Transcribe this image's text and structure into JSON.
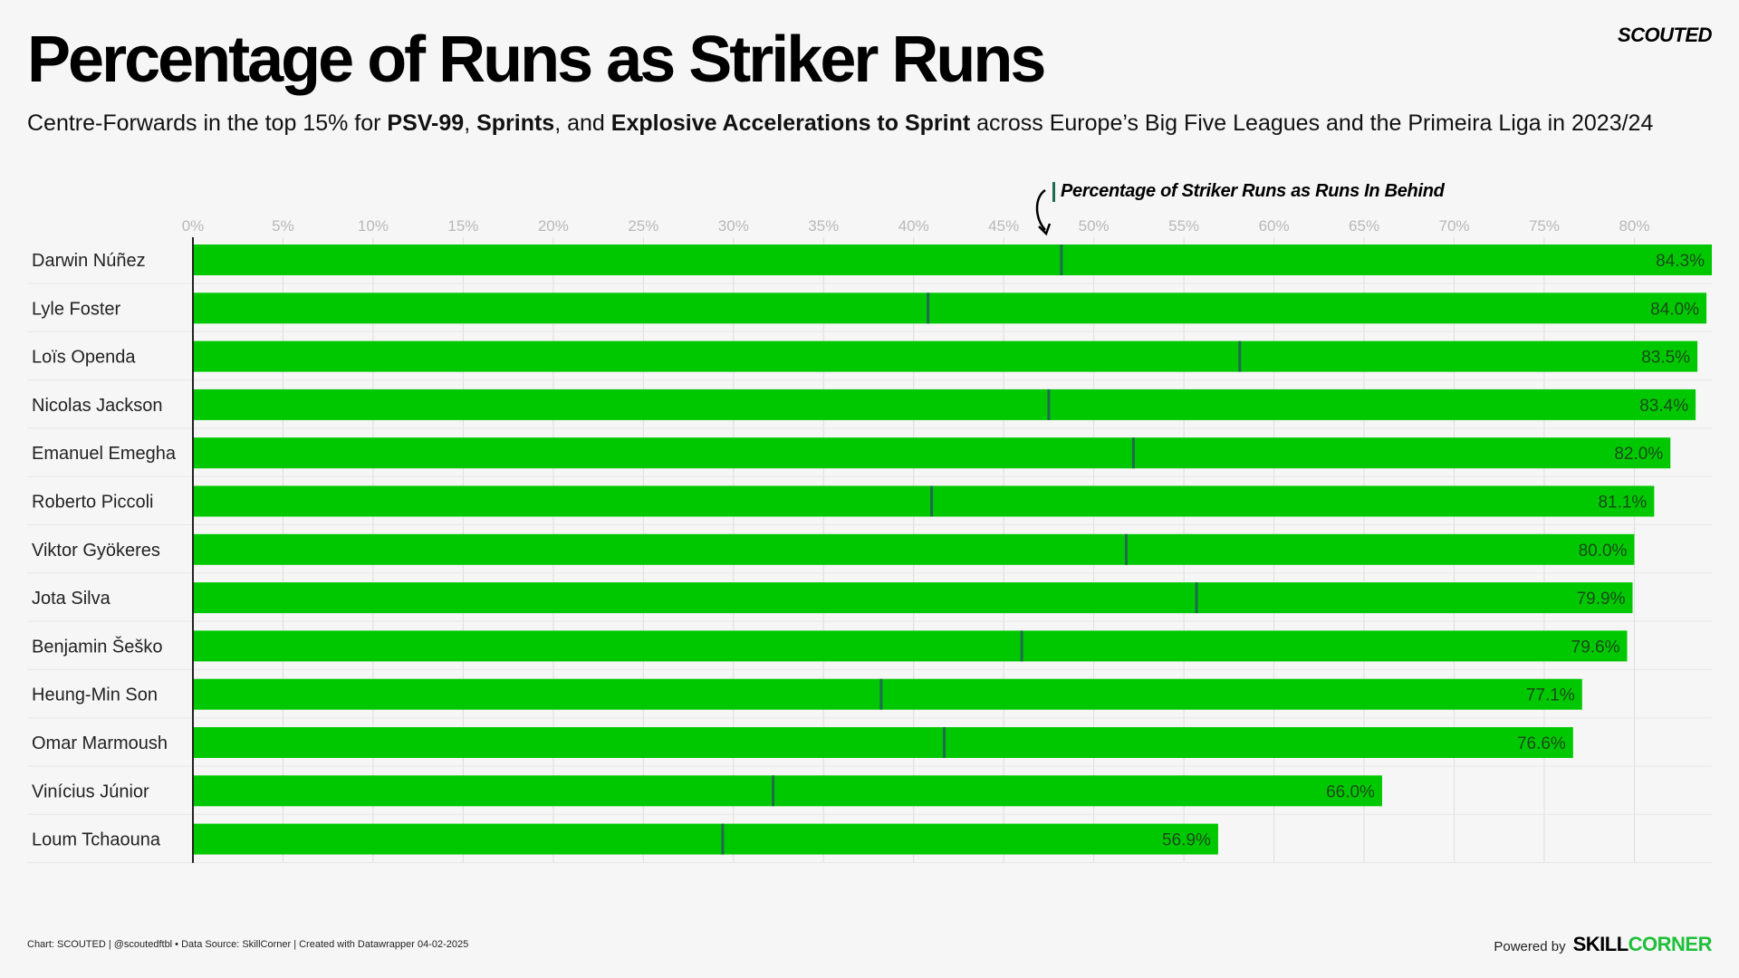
{
  "title": "Percentage of Runs as Striker Runs",
  "brand": "SCOUTED",
  "subtitle": {
    "part1": "Centre-Forwards in the top 15% for ",
    "b1": "PSV-99",
    "part2": ", ",
    "b2": "Sprints",
    "part3": ", and ",
    "b3": "Explosive Accelerations to Sprint",
    "part4": " across Europe’s Big Five Leagues and the Primeira Liga in 2023/24"
  },
  "marker_label": "Percentage of Striker Runs as Runs In Behind",
  "footer": {
    "credit": "Chart: SCOUTED | @scoutedftbl • Data Source: SkillCorner | Created with Datawrapper 04-02-2025",
    "powered": "Powered by",
    "logo_part1": "SKILL",
    "logo_part2": "CORNER"
  },
  "colors": {
    "bar": "#00c800",
    "marker": "#1f6b4e",
    "grid": "#dddddd"
  },
  "chart_data": {
    "type": "bar",
    "orientation": "horizontal",
    "xlim": [
      0,
      84.3
    ],
    "x_ticks": [
      "0%",
      "5%",
      "10%",
      "15%",
      "20%",
      "25%",
      "30%",
      "35%",
      "40%",
      "45%",
      "50%",
      "55%",
      "60%",
      "65%",
      "70%",
      "75%",
      "80%"
    ],
    "categories": [
      "Darwin Núñez",
      "Lyle Foster",
      "Loïs Openda",
      "Nicolas Jackson",
      "Emanuel Emegha",
      "Roberto Piccoli",
      "Viktor Gyökeres",
      "Jota Silva",
      "Benjamin Šeško",
      "Heung-Min Son",
      "Omar Marmoush",
      "Vinícius Júnior",
      "Loum Tchaouna"
    ],
    "values": [
      84.3,
      84.0,
      83.5,
      83.4,
      82.0,
      81.1,
      80.0,
      79.9,
      79.6,
      77.1,
      76.6,
      66.0,
      56.9
    ],
    "value_labels": [
      "84.3%",
      "84.0%",
      "83.5%",
      "83.4%",
      "82.0%",
      "81.1%",
      "80.0%",
      "79.9%",
      "79.6%",
      "77.1%",
      "76.6%",
      "66.0%",
      "56.9%"
    ],
    "marker_values": [
      48.2,
      40.8,
      58.1,
      47.5,
      52.2,
      41.0,
      51.8,
      55.7,
      46.0,
      38.2,
      41.7,
      32.2,
      29.4
    ],
    "grid": true
  }
}
